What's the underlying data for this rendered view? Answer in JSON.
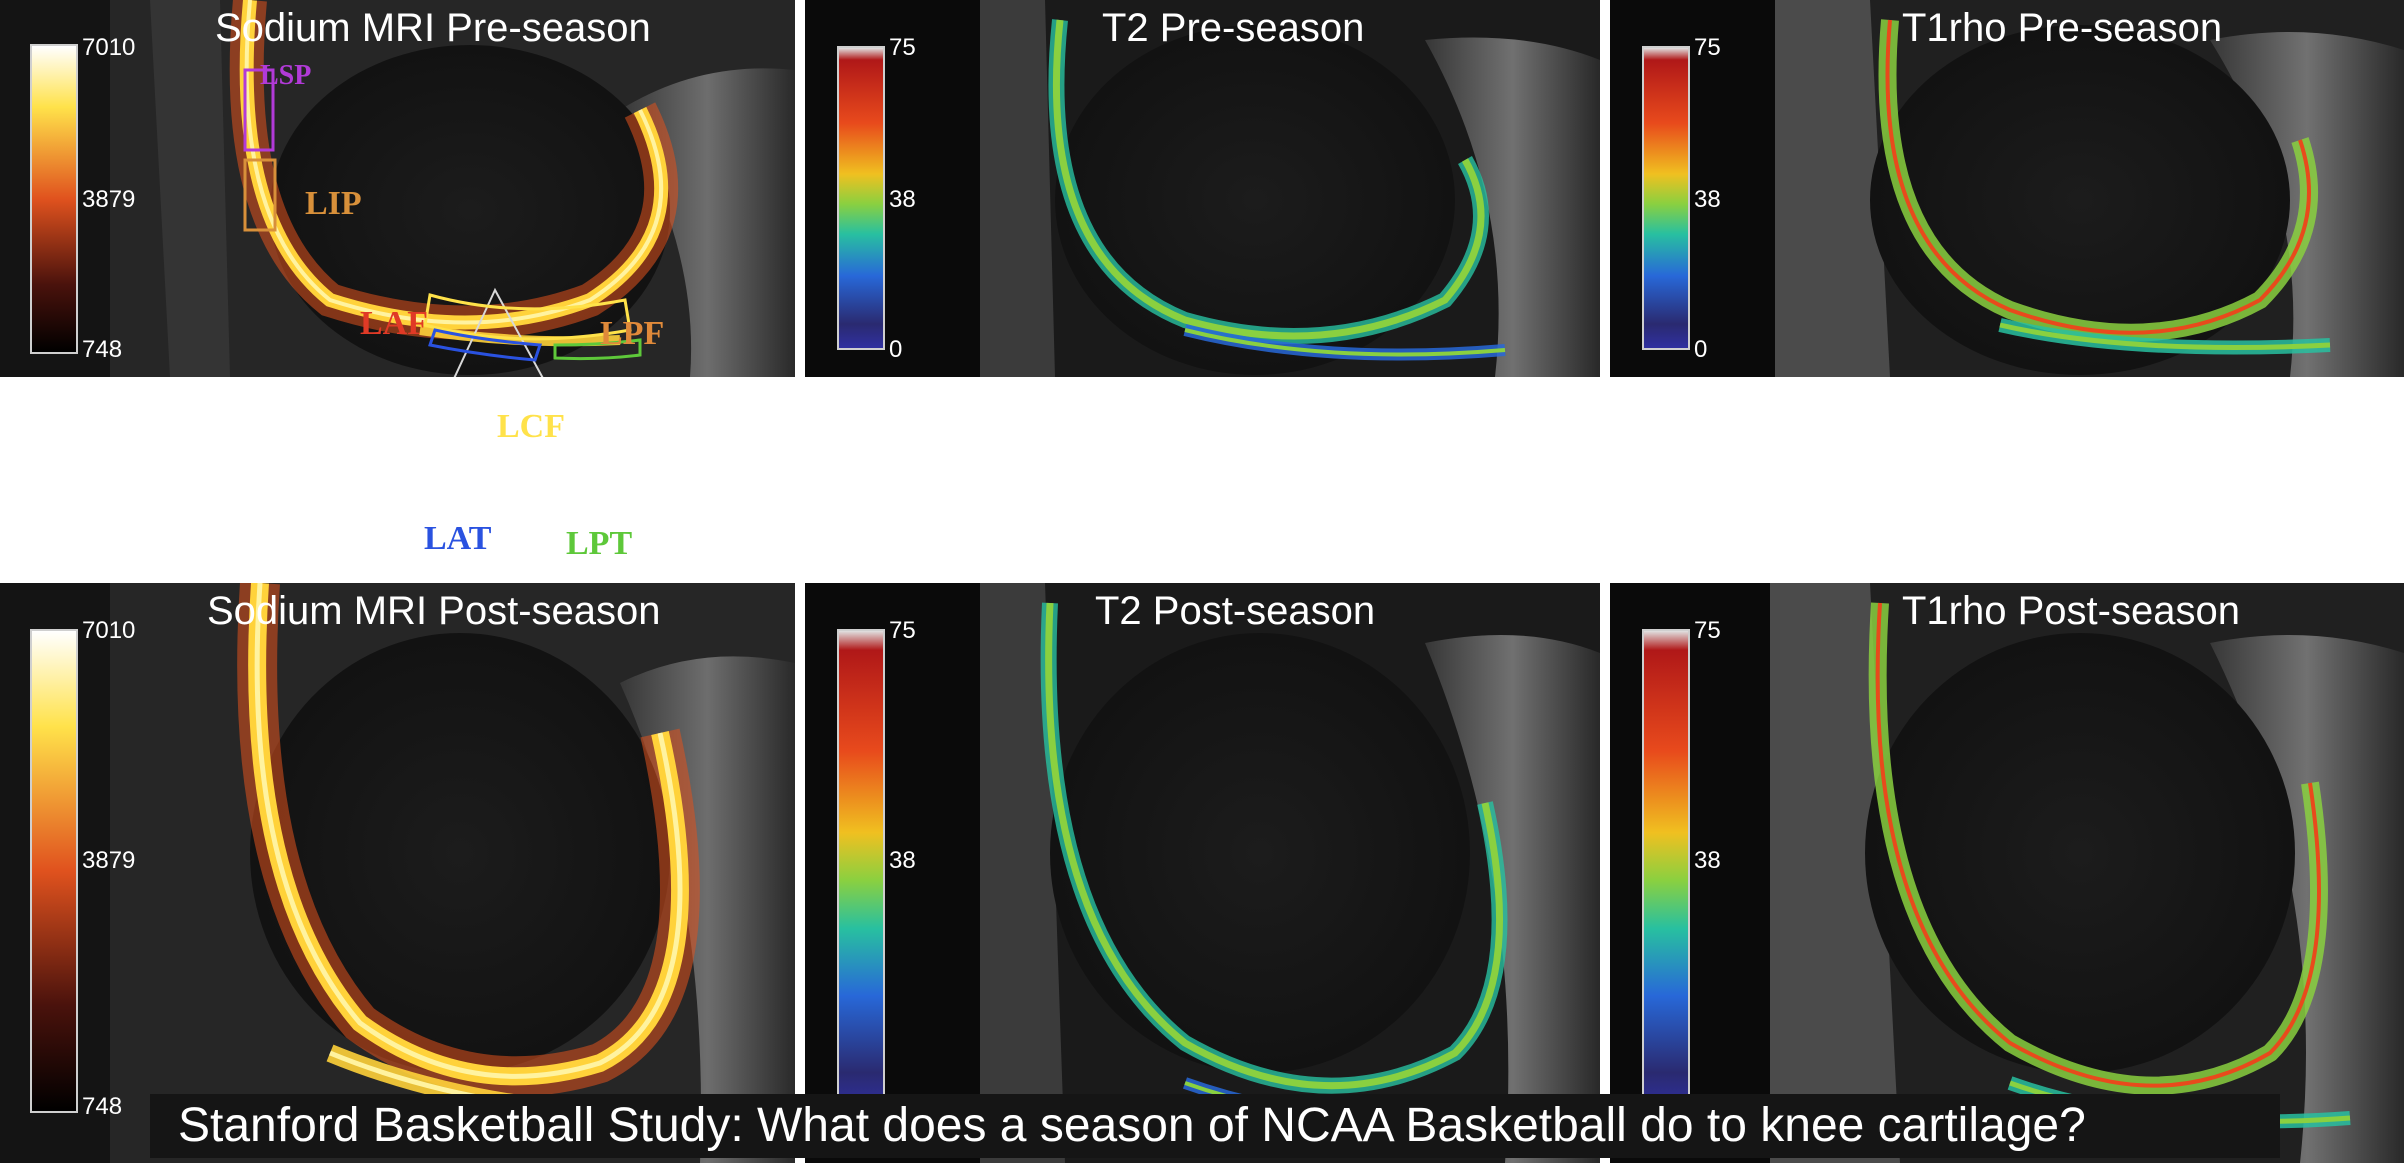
{
  "caption": "Stanford Basketball Study: What does a season of NCAA Basketball do to knee cartilage?",
  "panels": {
    "sodium_pre": {
      "title": "Sodium MRI Pre-season",
      "scale": {
        "max": "7010",
        "mid": "3879",
        "min": "748"
      },
      "regions": {
        "lsp": "LSP",
        "lip": "LIP",
        "laf": "LAF",
        "lpf": "LPF",
        "lcf": "LCF",
        "lat": "LAT",
        "lpt": "LPT"
      }
    },
    "t2_pre": {
      "title": "T2 Pre-season",
      "scale": {
        "max": "75",
        "mid": "38",
        "min": "0"
      }
    },
    "t1rho_pre": {
      "title": "T1rho Pre-season",
      "scale": {
        "max": "75",
        "mid": "38",
        "min": "0"
      }
    },
    "sodium_post": {
      "title": "Sodium MRI Post-season",
      "scale": {
        "max": "7010",
        "mid": "3879",
        "min": "748"
      }
    },
    "t2_post": {
      "title": "T2 Post-season",
      "scale": {
        "max": "75",
        "mid": "38"
      }
    },
    "t1rho_post": {
      "title": "T1rho Post-season",
      "scale": {
        "max": "75",
        "mid": "38"
      }
    }
  },
  "colors": {
    "sodium_ramp": [
      "#ffffff",
      "#ffe24a",
      "#e0521e",
      "#4a120c",
      "#000000"
    ],
    "relax_ramp": [
      "#e0e0e0",
      "#b01818",
      "#e84a1c",
      "#f0c020",
      "#8ad040",
      "#28c0a0",
      "#2868d8",
      "#3030a0"
    ],
    "roi_lsp": "#b23ad8",
    "roi_lip": "#d8903a",
    "roi_laf": "#e03a26",
    "roi_lpf": "#e08a3a",
    "roi_lcf": "#ffe24a",
    "roi_lat": "#2a52e0",
    "roi_lpt": "#5ec83a"
  }
}
